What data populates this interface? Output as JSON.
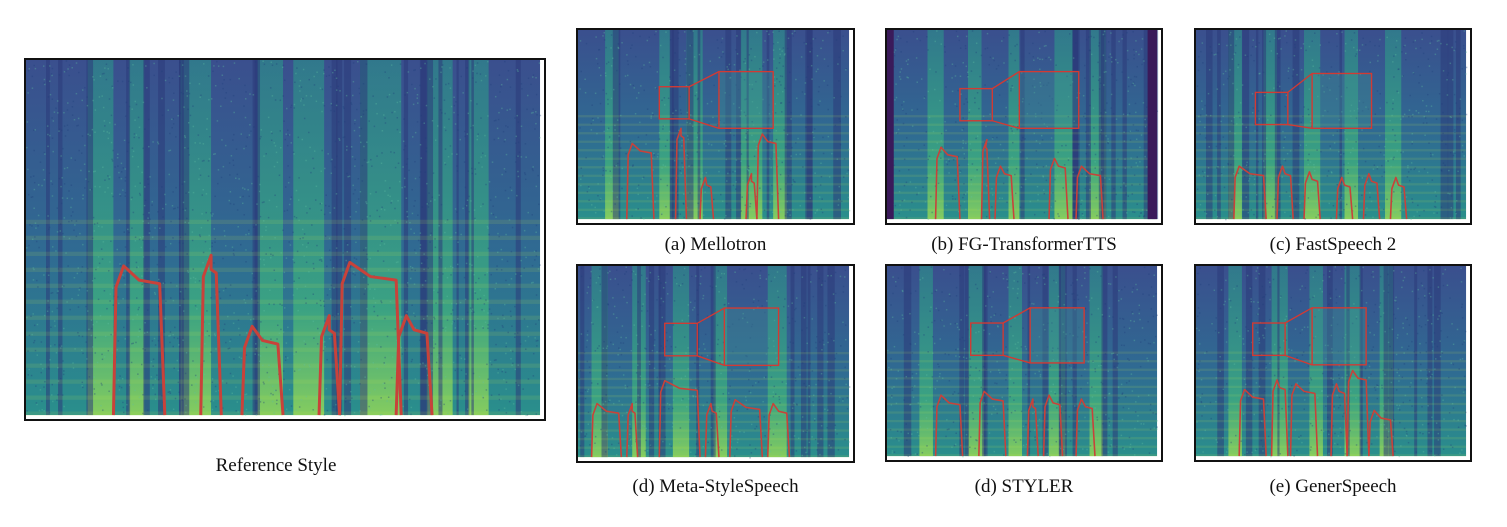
{
  "figure": {
    "reference": {
      "caption": "Reference Style"
    },
    "panels": [
      {
        "id": "mellotron",
        "caption": "(a) Mellotron"
      },
      {
        "id": "fg-transformertts",
        "caption": "(b) FG-TransformerTTS"
      },
      {
        "id": "fastspeech2",
        "caption": "(c) FastSpeech 2"
      },
      {
        "id": "meta-stylespeech",
        "caption": "(d) Meta-StyleSpeech"
      },
      {
        "id": "styler",
        "caption": "(d) STYLER"
      },
      {
        "id": "generspeech",
        "caption": "(e) GenerSpeech"
      }
    ],
    "colors": {
      "spectrogram_low": "#3b4f8c",
      "spectrogram_mid": "#2c8a8e",
      "spectrogram_high": "#b8de3a",
      "pitch_contour": "#c8423a",
      "zoom_box": "#d23a33"
    }
  }
}
